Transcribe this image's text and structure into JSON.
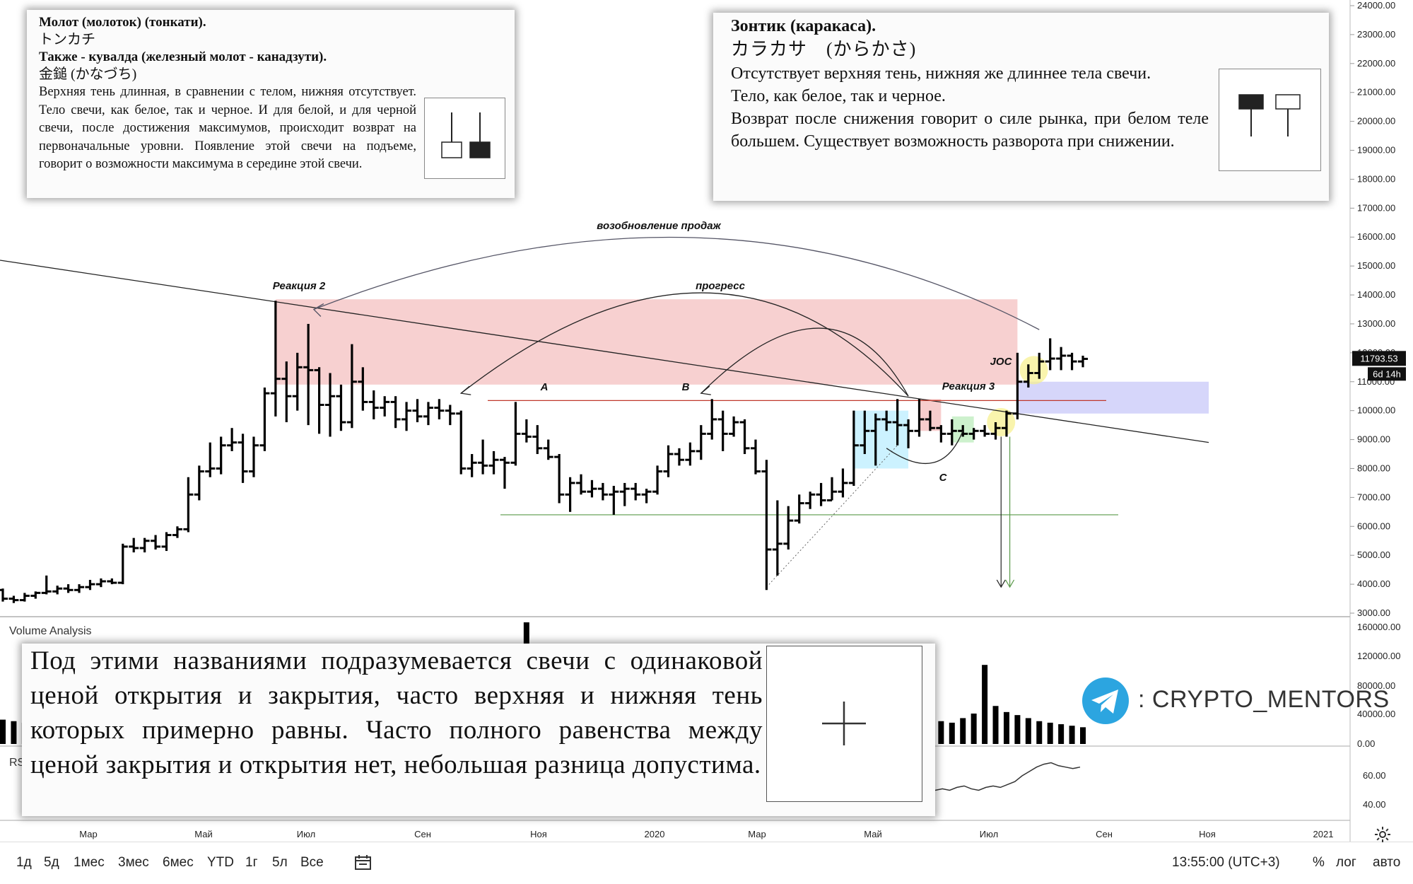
{
  "chart_data": {
    "type": "bar",
    "subtype": "ohlc",
    "price_axis": {
      "ticks": [
        "24000.00",
        "23000.00",
        "22000.00",
        "21000.00",
        "20000.00",
        "19000.00",
        "18000.00",
        "17000.00",
        "16000.00",
        "15000.00",
        "14000.00",
        "13000.00",
        "12000.00",
        "11000.00",
        "10000.00",
        "9000.00",
        "8000.00",
        "7000.00",
        "6000.00",
        "5000.00",
        "4000.00",
        "3000.00"
      ],
      "ylim": [
        3000,
        24000
      ],
      "current_price": "11793.53",
      "countdown": "6d 14h",
      "scale": "linear"
    },
    "volume_axis": {
      "ticks": [
        "160000.00",
        "120000.00",
        "80000.00",
        "40000.00",
        "0.00"
      ]
    },
    "rsi_axis": {
      "ticks": [
        "60.00",
        "40.00"
      ]
    },
    "time_axis": {
      "ticks": [
        "Мар",
        "Май",
        "Июл",
        "Сен",
        "Ноя",
        "2020",
        "Мар",
        "Май",
        "Июл",
        "Сен",
        "Ноя",
        "2021"
      ]
    },
    "series": [
      {
        "values": [
          [
            3800,
            3850,
            3400,
            3500
          ],
          [
            3500,
            3600,
            3350,
            3450
          ],
          [
            3450,
            3700,
            3400,
            3600
          ],
          [
            3600,
            3750,
            3500,
            3700
          ],
          [
            3700,
            4300,
            3650,
            3750
          ],
          [
            3750,
            3950,
            3650,
            3850
          ],
          [
            3850,
            4000,
            3700,
            3800
          ],
          [
            3800,
            4000,
            3700,
            3900
          ],
          [
            3900,
            4150,
            3800,
            4000
          ],
          [
            4000,
            4200,
            3900,
            4100
          ],
          [
            4100,
            4200,
            4000,
            4050
          ],
          [
            4050,
            5400,
            4000,
            5300
          ],
          [
            5300,
            5600,
            5100,
            5250
          ],
          [
            5250,
            5600,
            5100,
            5500
          ],
          [
            5500,
            5700,
            5200,
            5300
          ],
          [
            5300,
            5800,
            5150,
            5700
          ],
          [
            5700,
            6000,
            5600,
            5900
          ],
          [
            5900,
            7700,
            5800,
            7100
          ],
          [
            7100,
            8100,
            6900,
            7900
          ],
          [
            7900,
            8900,
            7700,
            8000
          ],
          [
            8000,
            9100,
            7800,
            8800
          ],
          [
            8800,
            9400,
            8600,
            8900
          ],
          [
            8900,
            9200,
            7500,
            7900
          ],
          [
            7900,
            9100,
            7700,
            8800
          ],
          [
            8800,
            10800,
            8600,
            10600
          ],
          [
            10600,
            13800,
            9800,
            11100
          ],
          [
            11100,
            11700,
            9600,
            10500
          ],
          [
            10500,
            12000,
            10000,
            11500
          ],
          [
            11500,
            13000,
            9500,
            11400
          ],
          [
            11400,
            11500,
            9200,
            10200
          ],
          [
            10200,
            11300,
            9100,
            10500
          ],
          [
            10500,
            10900,
            9300,
            9600
          ],
          [
            9600,
            12300,
            9400,
            11000
          ],
          [
            11000,
            11500,
            10000,
            10300
          ],
          [
            10300,
            10700,
            9700,
            10100
          ],
          [
            10100,
            10500,
            9800,
            10300
          ],
          [
            10300,
            10500,
            9400,
            9700
          ],
          [
            9700,
            10300,
            9300,
            10000
          ],
          [
            10000,
            10400,
            9600,
            9800
          ],
          [
            9800,
            10300,
            9500,
            10100
          ],
          [
            10100,
            10400,
            9700,
            10000
          ],
          [
            10000,
            10200,
            9500,
            9900
          ],
          [
            9900,
            10000,
            7800,
            8000
          ],
          [
            8000,
            8500,
            7700,
            8200
          ],
          [
            8200,
            9000,
            7800,
            8100
          ],
          [
            8100,
            8600,
            7800,
            8300
          ],
          [
            8300,
            8400,
            7300,
            8200
          ],
          [
            8200,
            10300,
            8100,
            9200
          ],
          [
            9200,
            9700,
            8900,
            9100
          ],
          [
            9100,
            9500,
            8500,
            8700
          ],
          [
            8700,
            9000,
            8300,
            8400
          ],
          [
            8400,
            8500,
            6800,
            7100
          ],
          [
            7100,
            7700,
            6500,
            7500
          ],
          [
            7500,
            7800,
            7100,
            7200
          ],
          [
            7200,
            7600,
            7000,
            7300
          ],
          [
            7300,
            7500,
            6900,
            7100
          ],
          [
            7100,
            7400,
            6400,
            7200
          ],
          [
            7200,
            7500,
            6700,
            7300
          ],
          [
            7300,
            7500,
            6900,
            7100
          ],
          [
            7100,
            7300,
            6800,
            7200
          ],
          [
            7200,
            8100,
            7100,
            7900
          ],
          [
            7900,
            8800,
            7700,
            8500
          ],
          [
            8500,
            8700,
            8100,
            8300
          ],
          [
            8300,
            8900,
            8100,
            8600
          ],
          [
            8600,
            9500,
            8300,
            9200
          ],
          [
            9200,
            10400,
            9000,
            9700
          ],
          [
            9700,
            10000,
            8600,
            9200
          ],
          [
            9200,
            9800,
            9100,
            9600
          ],
          [
            9600,
            9700,
            8500,
            8700
          ],
          [
            8700,
            9000,
            7800,
            7900
          ],
          [
            7900,
            8300,
            3800,
            5200
          ],
          [
            5200,
            6900,
            4300,
            5400
          ],
          [
            5400,
            6700,
            5200,
            6200
          ],
          [
            6200,
            7100,
            6100,
            6800
          ],
          [
            6800,
            7200,
            6600,
            7100
          ],
          [
            7100,
            7500,
            6700,
            6900
          ],
          [
            6900,
            7700,
            6900,
            7200
          ],
          [
            7200,
            8000,
            7000,
            7500
          ],
          [
            7500,
            10000,
            7400,
            8800
          ],
          [
            8800,
            10000,
            8500,
            9300
          ],
          [
            9300,
            9900,
            8100,
            9700
          ],
          [
            9700,
            10000,
            9300,
            9600
          ],
          [
            9600,
            10400,
            8800,
            9500
          ],
          [
            9500,
            9700,
            8700,
            9300
          ],
          [
            9300,
            10400,
            9100,
            9700
          ],
          [
            9700,
            10000,
            9300,
            9400
          ],
          [
            9400,
            9500,
            8900,
            9200
          ],
          [
            9200,
            9700,
            8800,
            9300
          ],
          [
            9300,
            9500,
            9100,
            9200
          ],
          [
            9200,
            9400,
            9000,
            9300
          ],
          [
            9300,
            9500,
            9100,
            9200
          ],
          [
            9200,
            9600,
            9000,
            9400
          ],
          [
            9400,
            10000,
            9100,
            9900
          ],
          [
            9900,
            12000,
            9700,
            11000
          ],
          [
            11000,
            11600,
            10800,
            11300
          ],
          [
            11300,
            12000,
            11100,
            11700
          ],
          [
            11700,
            12500,
            11400,
            11800
          ],
          [
            11800,
            12200,
            11400,
            11900
          ],
          [
            11900,
            12000,
            11400,
            11700
          ],
          [
            11700,
            11900,
            11500,
            11790
          ]
        ]
      }
    ],
    "volume": [
      32,
      30,
      28,
      34,
      30,
      28,
      36,
      33,
      26,
      28,
      34,
      30,
      40,
      32,
      28,
      30,
      36,
      28,
      30,
      26,
      24,
      30,
      42,
      32,
      24,
      28,
      30,
      34,
      28,
      30,
      26,
      28,
      30,
      32,
      26,
      24,
      28,
      30,
      24,
      26,
      24,
      28,
      26,
      28,
      30,
      24,
      22,
      26,
      160,
      130,
      30,
      28,
      26,
      32,
      34,
      30,
      40,
      36,
      34,
      28,
      30,
      32,
      26,
      24,
      28,
      30,
      22,
      34,
      36,
      38,
      28,
      26,
      30,
      28,
      24,
      34,
      38,
      30,
      26,
      32,
      42,
      36,
      40,
      32,
      28,
      26,
      30,
      28,
      34,
      40,
      104,
      50,
      42,
      38,
      34,
      30,
      28,
      26,
      24,
      22
    ],
    "annotations": [
      "возобновление продаж",
      "Реакция 2",
      "прогресс",
      "A",
      "B",
      "Реакция 3",
      "JOC",
      "C"
    ]
  },
  "colors": {
    "supply_zone": "#f6c8c8",
    "demand_zone": "#cfcff9",
    "cyan_zone": "#bfefff",
    "green_zone": "#c8f0c8",
    "yellow_circle": "#f7ef8a",
    "green_line": "#5a9a4a",
    "red_line": "#c0392b",
    "telegram_blue": "#2ca5e0"
  },
  "panels": {
    "hammer": {
      "title1": "Молот (молоток) (тонкати).",
      "jp1": "トンカチ",
      "title2": "Также - кувалда (железный молот - канадзути).",
      "jp2": "金鎚 (かなづち)",
      "body": "Верхняя тень длинная, в сравнении с телом, нижняя отсутствует. Тело свечи, как белое, так и черное. И для белой, и для черной свечи, после достижения максимумов, происходит возврат на первоначальные уровни. Появление этой свечи на подъеме, говорит о возможности максимума в середине этой свечи."
    },
    "umbrella": {
      "title": "Зонтик (каракаса).",
      "jp": "カラカサ　(からかさ)",
      "line1": "Отсутствует верхняя тень, нижняя же длиннее тела свечи.",
      "line2": "Тело, как белое, так и черное.",
      "line3": "Возврат после снижения говорит о силе рынка, при белом теле большем. Существует возможность разворота при снижении."
    },
    "doji": {
      "body": "Под этими названиями подразумевается свечи с одинаковой ценой открытия и закрытия, часто верхняя и нижняя тень которых примерно равны. Часто полного равенства между ценой закрытия и открытия нет, небольшая разница допустима."
    }
  },
  "labels": {
    "volume": "Volume Analysis",
    "rsi": "RS"
  },
  "watermark": {
    "text": ": CRYPTO_MENTORS",
    "icon": "telegram-icon"
  },
  "bottom_bar": {
    "ranges": [
      "1д",
      "5д",
      "1мес",
      "3мес",
      "6мес",
      "YTD",
      "1г",
      "5л",
      "Все"
    ],
    "compare_icon": "calendar-range-icon",
    "time": "13:55:00 (UTC+3)",
    "percent": "%",
    "log": "лог",
    "auto": "авто",
    "settings_icon": "gear-icon"
  }
}
